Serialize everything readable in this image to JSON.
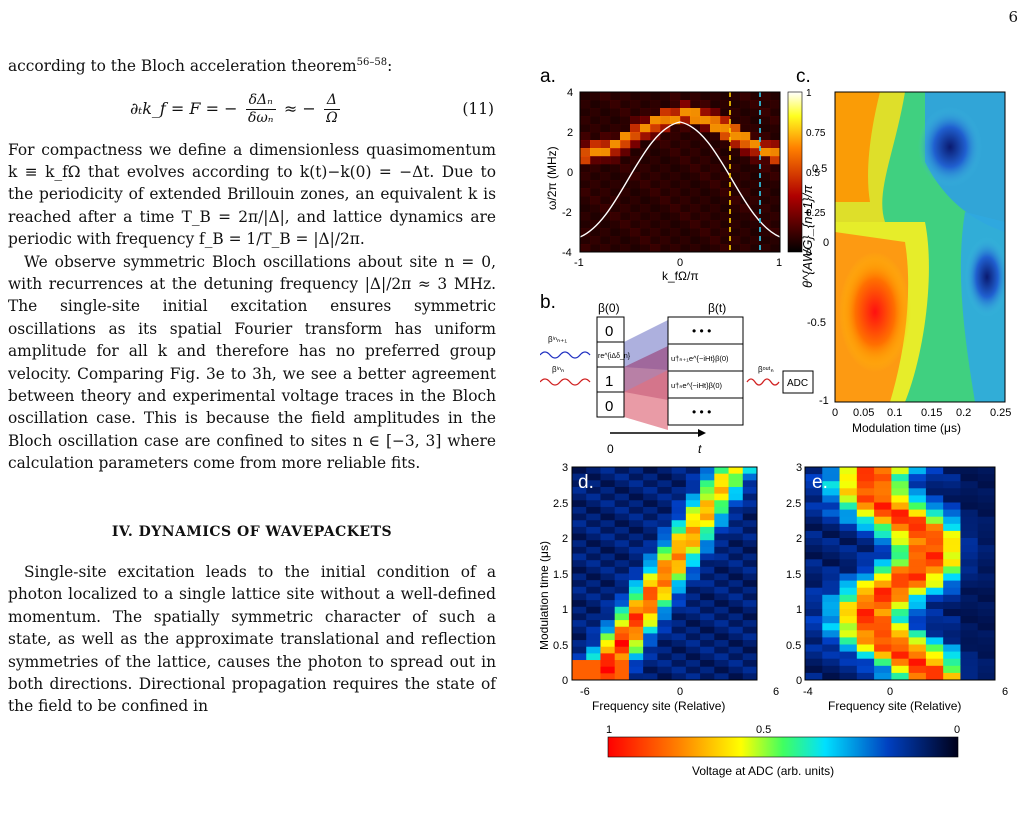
{
  "page_number": "6",
  "text": {
    "p1": "according to the Bloch acceleration theorem",
    "p1_cite": "56–58",
    "eq11_lhs": "∂ₜk_f = F = −",
    "eq11_frac1_num": "δΔₙ",
    "eq11_frac1_den": "δωₙ",
    "eq11_approx": "≈ −",
    "eq11_frac2_num": "Δ",
    "eq11_frac2_den": "Ω",
    "eq11_number": "(11)",
    "p2": "For compactness we define a dimensionless quasimomentum k ≡ k_fΩ that evolves according to k(t)−k(0) = −Δt. Due to the periodicity of extended Brillouin zones, an equivalent k is reached after a time T_B = 2π/|Δ|, and lattice dynamics are periodic with frequency f_B = 1/T_B = |Δ|/2π.",
    "p3": "We observe symmetric Bloch oscillations about site n = 0, with recurrences at the detuning frequency |Δ|/2π ≈ 3 MHz. The single-site initial excitation ensures symmetric oscillations as its spatial Fourier transform has uniform amplitude for all k and therefore has no preferred group velocity. Comparing Fig. 3e to 3h, we see a better agreement between theory and experimental voltage traces in the Bloch oscillation case. This is because the field amplitudes in the Bloch oscillation case are confined to sites n ∈ [−3, 3] where calculation parameters come from more reliable fits.",
    "section": "IV.   DYNAMICS OF WAVEPACKETS",
    "p4": "Single-site excitation leads to the initial condition of a photon localized to a single lattice site without a well-defined momentum. The spatially symmetric character of such a state, as well as the approximate translational and reflection symmetries of the lattice, causes the photon to spread out in both directions. Directional propagation requires the state of the field to be confined in"
  },
  "figure": {
    "panel_a": {
      "label": "a.",
      "ylabel": "ω/2π (MHz)",
      "xlabel": "k_fΩ/π",
      "yticks": [
        "4",
        "2",
        "0",
        "-2",
        "-4"
      ],
      "xticks": [
        "-1",
        "0",
        "1"
      ],
      "colorbar_ticks": [
        "1",
        "0.75",
        "0.5",
        "0.25",
        "0"
      ]
    },
    "panel_b": {
      "label": "b.",
      "left_header": "β(0)",
      "right_header": "β(t)",
      "left_cells": [
        "0",
        "re^{iΔδ_n}",
        "1",
        "0"
      ],
      "right_cells": [
        "• • •",
        "u†ₙ₊₁e^{−iHt}β(0)",
        "u†ₙe^{−iHt}β(0)",
        "• • •"
      ],
      "input_top": "βⁱⁿₙ₊₁",
      "input_bottom": "βⁱⁿₙ",
      "output": "βᵒᵘᵗₙ",
      "adc": "ADC",
      "time_start": "0",
      "time_end": "t"
    },
    "panel_c": {
      "label": "c.",
      "ylabel": "θ^{AWG}_{n+1}/π",
      "xlabel": "Modulation time (μs)",
      "yticks": [
        "0.5",
        "0",
        "-0.5",
        "-1"
      ],
      "xticks": [
        "0",
        "0.05",
        "0.1",
        "0.15",
        "0.2",
        "0.25"
      ]
    },
    "panel_d": {
      "label": "d.",
      "ylabel": "Modulation time (μs)",
      "xlabel": "Frequency site (Relative)",
      "yticks": [
        "3",
        "2.5",
        "2",
        "1.5",
        "1",
        "0.5",
        "0"
      ],
      "xticks": [
        "-6",
        "0",
        "6"
      ]
    },
    "panel_e": {
      "label": "e.",
      "xlabel": "Frequency site (Relative)",
      "yticks": [
        "3",
        "2.5",
        "2",
        "1.5",
        "1",
        "0.5",
        "0"
      ],
      "xticks": [
        "-4",
        "0",
        "6"
      ]
    },
    "colorbar": {
      "label": "Voltage at ADC (arb. units)",
      "ticks": [
        "1",
        "0.5",
        "0"
      ]
    }
  }
}
